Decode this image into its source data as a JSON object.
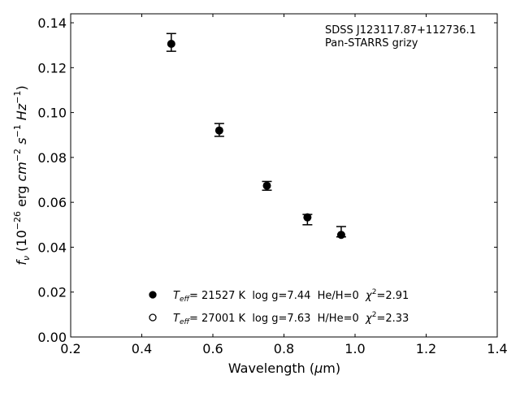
{
  "chart_data": {
    "type": "scatter",
    "title": "",
    "annotation": [
      "SDSS J123117.87+112736.1",
      "Pan-STARRS grizy"
    ],
    "xlabel": "Wavelength (μm)",
    "ylabel": "f_ν (10^-26 erg cm^-2 s^-1 Hz^-1)",
    "xlim": [
      0.2,
      1.4
    ],
    "ylim": [
      0.0,
      0.144
    ],
    "xticks": [
      "0.2",
      "0.4",
      "0.6",
      "0.8",
      "1.0",
      "1.2",
      "1.4"
    ],
    "yticks": [
      "0.00",
      "0.02",
      "0.04",
      "0.06",
      "0.08",
      "0.10",
      "0.12",
      "0.14"
    ],
    "grid": false,
    "series": [
      {
        "name": "Pan-STARRS grizy photometry",
        "marker": "filled-circle",
        "color": "#000000",
        "x": [
          0.483,
          0.618,
          0.752,
          0.866,
          0.961
        ],
        "y": [
          0.1306,
          0.092,
          0.0674,
          0.0533,
          0.0455
        ],
        "yerr_low": [
          0.1273,
          0.0894,
          0.0654,
          0.05,
          0.0446
        ],
        "yerr_high": [
          0.1352,
          0.0951,
          0.0693,
          0.0546,
          0.0492
        ]
      }
    ],
    "legend": {
      "placement": "bottom-center",
      "entries": [
        {
          "marker": "filled-circle",
          "teff": "21527",
          "logg": "7.44",
          "comp": "He/H=0",
          "chi2": "2.91"
        },
        {
          "marker": "open-circle",
          "teff": "27001",
          "logg": "7.63",
          "comp": "H/He=0",
          "chi2": "2.33"
        }
      ]
    }
  }
}
